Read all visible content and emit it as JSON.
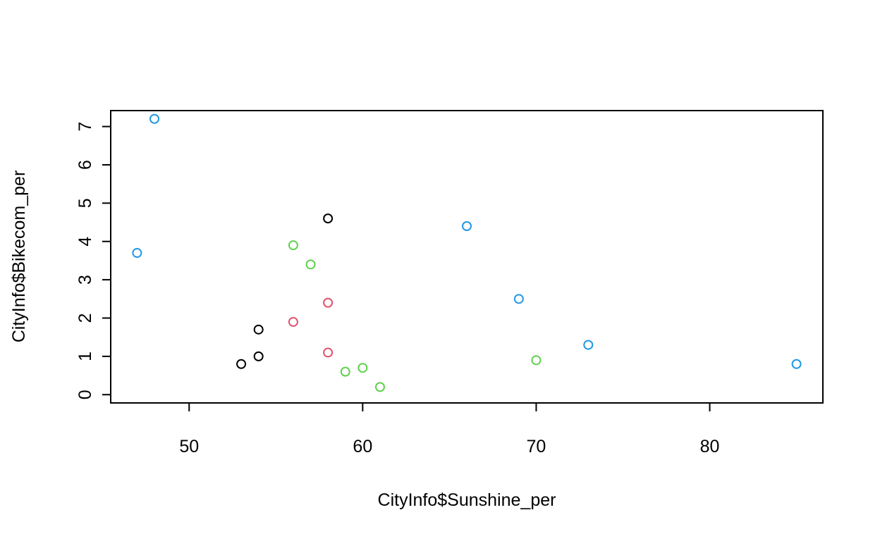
{
  "chart_data": {
    "type": "scatter",
    "xlabel": "CityInfo$Sunshine_per",
    "ylabel": "CityInfo$Bikecom_per",
    "xlim": [
      45.48,
      86.52
    ],
    "ylim": [
      -0.216,
      7.416
    ],
    "x_ticks": [
      50,
      60,
      70,
      80
    ],
    "y_ticks": [
      0,
      1,
      2,
      3,
      4,
      5,
      6,
      7
    ],
    "grid": false,
    "legend": "none",
    "marker": "open-circle",
    "points": [
      {
        "x": 48,
        "y": 7.2,
        "color": "#2297E6"
      },
      {
        "x": 47,
        "y": 3.7,
        "color": "#2297E6"
      },
      {
        "x": 66,
        "y": 4.4,
        "color": "#2297E6"
      },
      {
        "x": 69,
        "y": 2.5,
        "color": "#2297E6"
      },
      {
        "x": 73,
        "y": 1.3,
        "color": "#2297E6"
      },
      {
        "x": 85,
        "y": 0.8,
        "color": "#2297E6"
      },
      {
        "x": 58,
        "y": 4.6,
        "color": "#000000"
      },
      {
        "x": 54,
        "y": 1.7,
        "color": "#000000"
      },
      {
        "x": 54,
        "y": 1.0,
        "color": "#000000"
      },
      {
        "x": 53,
        "y": 0.8,
        "color": "#000000"
      },
      {
        "x": 56,
        "y": 3.9,
        "color": "#61D04F"
      },
      {
        "x": 57,
        "y": 3.4,
        "color": "#61D04F"
      },
      {
        "x": 59,
        "y": 0.6,
        "color": "#61D04F"
      },
      {
        "x": 60,
        "y": 0.7,
        "color": "#61D04F"
      },
      {
        "x": 61,
        "y": 0.2,
        "color": "#61D04F"
      },
      {
        "x": 70,
        "y": 0.9,
        "color": "#61D04F"
      },
      {
        "x": 58,
        "y": 2.4,
        "color": "#DF536B"
      },
      {
        "x": 56,
        "y": 1.9,
        "color": "#DF536B"
      },
      {
        "x": 58,
        "y": 1.1,
        "color": "#DF536B"
      }
    ]
  }
}
